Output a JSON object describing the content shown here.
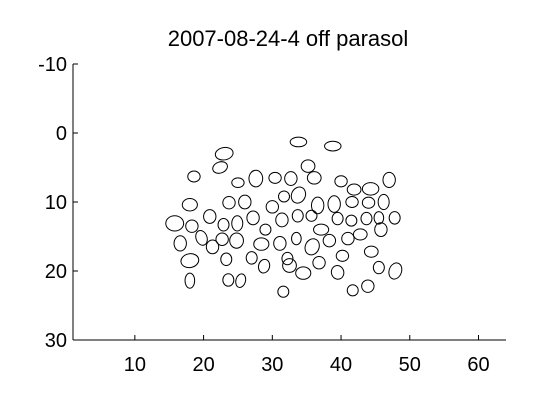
{
  "chart_data": {
    "type": "scatter",
    "title": "2007-08-24-4 off parasol",
    "xlabel": "",
    "ylabel": "",
    "xlim": [
      1,
      64
    ],
    "ylim": [
      -10,
      30
    ],
    "y_reversed": true,
    "grid": false,
    "legend": "none",
    "x_ticks": [
      10,
      20,
      30,
      40,
      50,
      60
    ],
    "y_ticks": [
      -10,
      0,
      10,
      20,
      30
    ],
    "ellipses": [
      {
        "cx": 33.8,
        "cy": 1.3,
        "rx": 1.2,
        "ry": 0.7,
        "angle": 0
      },
      {
        "cx": 38.8,
        "cy": 1.9,
        "rx": 1.2,
        "ry": 0.7,
        "angle": 0
      },
      {
        "cx": 23.0,
        "cy": 3.0,
        "rx": 1.3,
        "ry": 0.9,
        "angle": -10
      },
      {
        "cx": 22.4,
        "cy": 5.0,
        "rx": 1.1,
        "ry": 0.8,
        "angle": -20
      },
      {
        "cx": 35.2,
        "cy": 4.8,
        "rx": 1.0,
        "ry": 0.9,
        "angle": 0
      },
      {
        "cx": 18.6,
        "cy": 6.3,
        "rx": 0.9,
        "ry": 0.8,
        "angle": 0
      },
      {
        "cx": 25.0,
        "cy": 7.2,
        "rx": 0.9,
        "ry": 0.7,
        "angle": 0
      },
      {
        "cx": 27.6,
        "cy": 6.6,
        "rx": 1.0,
        "ry": 1.2,
        "angle": 0
      },
      {
        "cx": 30.4,
        "cy": 6.5,
        "rx": 0.9,
        "ry": 0.8,
        "angle": 0
      },
      {
        "cx": 32.7,
        "cy": 6.6,
        "rx": 0.9,
        "ry": 1.0,
        "angle": 0
      },
      {
        "cx": 36.1,
        "cy": 6.5,
        "rx": 1.0,
        "ry": 0.9,
        "angle": 0
      },
      {
        "cx": 40.0,
        "cy": 7.0,
        "rx": 0.9,
        "ry": 0.8,
        "angle": 0
      },
      {
        "cx": 41.9,
        "cy": 8.2,
        "rx": 1.0,
        "ry": 0.8,
        "angle": 0
      },
      {
        "cx": 44.3,
        "cy": 8.1,
        "rx": 1.2,
        "ry": 0.9,
        "angle": 0
      },
      {
        "cx": 47.0,
        "cy": 6.8,
        "rx": 0.9,
        "ry": 1.1,
        "angle": 0
      },
      {
        "cx": 18.0,
        "cy": 10.4,
        "rx": 1.1,
        "ry": 0.9,
        "angle": 0
      },
      {
        "cx": 23.7,
        "cy": 10.1,
        "rx": 0.9,
        "ry": 0.9,
        "angle": 0
      },
      {
        "cx": 26.0,
        "cy": 10.0,
        "rx": 0.9,
        "ry": 1.0,
        "angle": 0
      },
      {
        "cx": 30.0,
        "cy": 10.7,
        "rx": 0.9,
        "ry": 0.9,
        "angle": 0
      },
      {
        "cx": 31.7,
        "cy": 9.2,
        "rx": 0.8,
        "ry": 0.8,
        "angle": 0
      },
      {
        "cx": 33.8,
        "cy": 9.0,
        "rx": 1.0,
        "ry": 1.2,
        "angle": 25
      },
      {
        "cx": 36.6,
        "cy": 10.5,
        "rx": 0.9,
        "ry": 1.2,
        "angle": 0
      },
      {
        "cx": 39.0,
        "cy": 10.3,
        "rx": 0.9,
        "ry": 1.2,
        "angle": 0
      },
      {
        "cx": 41.6,
        "cy": 10.0,
        "rx": 0.9,
        "ry": 0.8,
        "angle": 0
      },
      {
        "cx": 44.0,
        "cy": 10.1,
        "rx": 0.9,
        "ry": 0.8,
        "angle": 0
      },
      {
        "cx": 46.2,
        "cy": 10.0,
        "rx": 0.8,
        "ry": 1.1,
        "angle": 0
      },
      {
        "cx": 15.8,
        "cy": 13.1,
        "rx": 1.3,
        "ry": 1.1,
        "angle": 0
      },
      {
        "cx": 18.3,
        "cy": 13.5,
        "rx": 0.9,
        "ry": 0.9,
        "angle": 0
      },
      {
        "cx": 20.9,
        "cy": 12.1,
        "rx": 0.9,
        "ry": 1.0,
        "angle": 0
      },
      {
        "cx": 22.9,
        "cy": 13.3,
        "rx": 0.8,
        "ry": 0.9,
        "angle": 0
      },
      {
        "cx": 24.9,
        "cy": 13.1,
        "rx": 0.8,
        "ry": 1.1,
        "angle": 0
      },
      {
        "cx": 27.2,
        "cy": 12.3,
        "rx": 0.9,
        "ry": 1.0,
        "angle": 0
      },
      {
        "cx": 29.0,
        "cy": 14.0,
        "rx": 0.8,
        "ry": 0.8,
        "angle": 0
      },
      {
        "cx": 31.4,
        "cy": 12.6,
        "rx": 0.9,
        "ry": 1.0,
        "angle": 0
      },
      {
        "cx": 33.7,
        "cy": 12.0,
        "rx": 0.8,
        "ry": 0.9,
        "angle": 0
      },
      {
        "cx": 35.7,
        "cy": 12.0,
        "rx": 0.8,
        "ry": 0.8,
        "angle": 0
      },
      {
        "cx": 37.1,
        "cy": 14.0,
        "rx": 1.1,
        "ry": 0.8,
        "angle": 0
      },
      {
        "cx": 39.5,
        "cy": 12.4,
        "rx": 0.8,
        "ry": 0.9,
        "angle": 0
      },
      {
        "cx": 41.5,
        "cy": 12.7,
        "rx": 0.8,
        "ry": 0.8,
        "angle": 0
      },
      {
        "cx": 43.7,
        "cy": 12.4,
        "rx": 0.8,
        "ry": 0.9,
        "angle": 0
      },
      {
        "cx": 45.5,
        "cy": 12.3,
        "rx": 0.7,
        "ry": 0.9,
        "angle": 0
      },
      {
        "cx": 47.8,
        "cy": 12.3,
        "rx": 0.8,
        "ry": 0.9,
        "angle": 0
      },
      {
        "cx": 16.6,
        "cy": 16.0,
        "rx": 0.9,
        "ry": 1.1,
        "angle": 0
      },
      {
        "cx": 19.7,
        "cy": 15.2,
        "rx": 0.8,
        "ry": 1.1,
        "angle": -20
      },
      {
        "cx": 21.3,
        "cy": 16.5,
        "rx": 0.9,
        "ry": 1.0,
        "angle": 0
      },
      {
        "cx": 22.7,
        "cy": 15.4,
        "rx": 0.9,
        "ry": 0.9,
        "angle": 0
      },
      {
        "cx": 24.8,
        "cy": 15.6,
        "rx": 1.0,
        "ry": 1.1,
        "angle": 0
      },
      {
        "cx": 28.4,
        "cy": 16.1,
        "rx": 1.1,
        "ry": 0.9,
        "angle": 0
      },
      {
        "cx": 31.1,
        "cy": 16.0,
        "rx": 0.9,
        "ry": 1.0,
        "angle": 0
      },
      {
        "cx": 33.5,
        "cy": 15.3,
        "rx": 0.7,
        "ry": 0.9,
        "angle": 0
      },
      {
        "cx": 35.8,
        "cy": 16.5,
        "rx": 1.0,
        "ry": 1.2,
        "angle": 25
      },
      {
        "cx": 38.3,
        "cy": 15.6,
        "rx": 0.9,
        "ry": 0.9,
        "angle": 0
      },
      {
        "cx": 41.0,
        "cy": 15.3,
        "rx": 0.9,
        "ry": 0.9,
        "angle": 0
      },
      {
        "cx": 42.8,
        "cy": 14.7,
        "rx": 1.0,
        "ry": 0.8,
        "angle": 0
      },
      {
        "cx": 45.8,
        "cy": 14.0,
        "rx": 0.9,
        "ry": 1.0,
        "angle": 0
      },
      {
        "cx": 44.4,
        "cy": 17.2,
        "rx": 1.0,
        "ry": 0.8,
        "angle": 0
      },
      {
        "cx": 18.0,
        "cy": 18.5,
        "rx": 1.3,
        "ry": 1.0,
        "angle": -10
      },
      {
        "cx": 23.3,
        "cy": 18.3,
        "rx": 0.8,
        "ry": 0.9,
        "angle": 0
      },
      {
        "cx": 27.0,
        "cy": 18.1,
        "rx": 0.8,
        "ry": 0.9,
        "angle": 0
      },
      {
        "cx": 28.8,
        "cy": 19.3,
        "rx": 0.8,
        "ry": 1.0,
        "angle": 15
      },
      {
        "cx": 32.2,
        "cy": 18.2,
        "rx": 0.8,
        "ry": 0.9,
        "angle": 0
      },
      {
        "cx": 32.5,
        "cy": 19.2,
        "rx": 1.0,
        "ry": 1.0,
        "angle": 0
      },
      {
        "cx": 34.5,
        "cy": 20.3,
        "rx": 1.1,
        "ry": 0.9,
        "angle": 0
      },
      {
        "cx": 36.8,
        "cy": 18.8,
        "rx": 0.9,
        "ry": 0.9,
        "angle": 0
      },
      {
        "cx": 40.2,
        "cy": 17.8,
        "rx": 0.9,
        "ry": 0.8,
        "angle": 0
      },
      {
        "cx": 39.5,
        "cy": 20.2,
        "rx": 0.9,
        "ry": 1.0,
        "angle": -15
      },
      {
        "cx": 45.5,
        "cy": 19.5,
        "rx": 0.8,
        "ry": 0.9,
        "angle": 0
      },
      {
        "cx": 47.9,
        "cy": 20.0,
        "rx": 0.9,
        "ry": 1.2,
        "angle": 20
      },
      {
        "cx": 18.0,
        "cy": 21.4,
        "rx": 0.7,
        "ry": 1.1,
        "angle": 0
      },
      {
        "cx": 23.6,
        "cy": 21.3,
        "rx": 0.8,
        "ry": 0.9,
        "angle": 0
      },
      {
        "cx": 25.4,
        "cy": 21.4,
        "rx": 0.7,
        "ry": 1.0,
        "angle": 15
      },
      {
        "cx": 31.6,
        "cy": 23.0,
        "rx": 0.8,
        "ry": 0.8,
        "angle": 0
      },
      {
        "cx": 41.7,
        "cy": 22.8,
        "rx": 0.8,
        "ry": 0.8,
        "angle": 0
      },
      {
        "cx": 43.9,
        "cy": 22.2,
        "rx": 0.9,
        "ry": 0.9,
        "angle": 0
      }
    ]
  }
}
